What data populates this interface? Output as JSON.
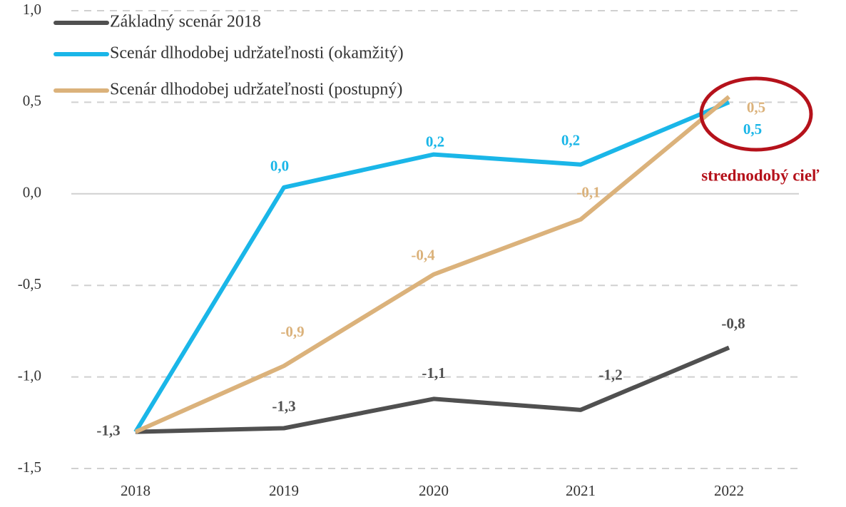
{
  "chart_data": {
    "type": "line",
    "categories": [
      "2018",
      "2019",
      "2020",
      "2021",
      "2022"
    ],
    "series": [
      {
        "name": "Základný scenár 2018",
        "color": "#505050",
        "values": [
          -1.3,
          -1.28,
          -1.12,
          -1.18,
          -0.84
        ],
        "value_labels": [
          "-1,3",
          "-1,3",
          "-1,1",
          "-1,2",
          "-0,8"
        ]
      },
      {
        "name": "Scenár dlhodobej udržateľnosti (okamžitý)",
        "color": "#1ab6e8",
        "values": [
          -1.3,
          0.035,
          0.215,
          0.16,
          0.5
        ],
        "value_labels": [
          null,
          "0,0",
          "0,2",
          "0,2",
          "0,5"
        ]
      },
      {
        "name": "Scenár dlhodobej udržateľnosti (postupný)",
        "color": "#dbb27b",
        "values": [
          -1.3,
          -0.94,
          -0.44,
          -0.14,
          0.53
        ],
        "value_labels": [
          null,
          "-0,9",
          "-0,4",
          "-0,1",
          "0,5"
        ]
      }
    ],
    "ylim": [
      -1.5,
      1.0
    ],
    "yticks": [
      {
        "value": -1.5,
        "label": "-1,5"
      },
      {
        "value": -1.0,
        "label": "-1,0"
      },
      {
        "value": -0.5,
        "label": "-0,5"
      },
      {
        "value": 0,
        "label": "0,0"
      },
      {
        "value": 0.5,
        "label": "0,5"
      },
      {
        "value": 1.0,
        "label": "1,0"
      }
    ],
    "grid": true,
    "annotation": "strednodobý cieľ",
    "annotation_color": "#b5121b"
  }
}
